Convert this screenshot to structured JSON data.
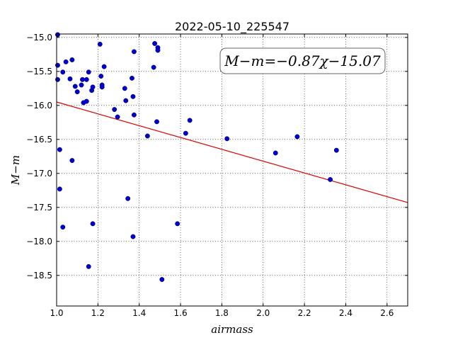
{
  "chart_data": {
    "type": "scatter",
    "title": "2022-05-10_225547",
    "xlabel": "airmass",
    "ylabel": "M−m",
    "xlim": [
      1.0,
      2.7
    ],
    "ylim": [
      -18.95,
      -14.95
    ],
    "y_inverted": true,
    "grid": true,
    "xticks": [
      1.0,
      1.2,
      1.4,
      1.6,
      1.8,
      2.0,
      2.2,
      2.4,
      2.6
    ],
    "xtick_labels": [
      "1.0",
      "1.2",
      "1.4",
      "1.6",
      "1.8",
      "2.0",
      "2.2",
      "2.4",
      "2.6"
    ],
    "yticks": [
      -15.0,
      -15.5,
      -16.0,
      -16.5,
      -17.0,
      -17.5,
      -18.0,
      -18.5
    ],
    "ytick_labels": [
      "−15.0",
      "−15.5",
      "−16.0",
      "−16.5",
      "−17.0",
      "−17.5",
      "−18.0",
      "−18.5"
    ],
    "annotation": "M−m=−0.87χ−15.07",
    "annotation_position": "top-right",
    "point_color": "#0000cc",
    "fit_color": "#dd0000",
    "fit": {
      "slope": -0.87,
      "intercept": -15.07
    },
    "points": [
      {
        "x": 1.005,
        "y": -14.96
      },
      {
        "x": 1.005,
        "y": -15.41
      },
      {
        "x": 1.005,
        "y": -15.62
      },
      {
        "x": 1.015,
        "y": -16.65
      },
      {
        "x": 1.015,
        "y": -17.23
      },
      {
        "x": 1.03,
        "y": -17.79
      },
      {
        "x": 1.03,
        "y": -15.51
      },
      {
        "x": 1.045,
        "y": -15.36
      },
      {
        "x": 1.065,
        "y": -15.61
      },
      {
        "x": 1.075,
        "y": -15.33
      },
      {
        "x": 1.075,
        "y": -16.81
      },
      {
        "x": 1.09,
        "y": -15.72
      },
      {
        "x": 1.1,
        "y": -15.8
      },
      {
        "x": 1.12,
        "y": -15.7
      },
      {
        "x": 1.125,
        "y": -15.62
      },
      {
        "x": 1.13,
        "y": -15.96
      },
      {
        "x": 1.145,
        "y": -15.94
      },
      {
        "x": 1.145,
        "y": -15.62
      },
      {
        "x": 1.155,
        "y": -15.51
      },
      {
        "x": 1.155,
        "y": -18.37
      },
      {
        "x": 1.17,
        "y": -15.78
      },
      {
        "x": 1.175,
        "y": -15.73
      },
      {
        "x": 1.175,
        "y": -17.74
      },
      {
        "x": 1.21,
        "y": -15.1
      },
      {
        "x": 1.215,
        "y": -15.57
      },
      {
        "x": 1.22,
        "y": -15.7
      },
      {
        "x": 1.22,
        "y": -15.73
      },
      {
        "x": 1.23,
        "y": -15.43
      },
      {
        "x": 1.28,
        "y": -16.06
      },
      {
        "x": 1.295,
        "y": -16.17
      },
      {
        "x": 1.33,
        "y": -15.75
      },
      {
        "x": 1.335,
        "y": -15.93
      },
      {
        "x": 1.345,
        "y": -17.37
      },
      {
        "x": 1.365,
        "y": -15.6
      },
      {
        "x": 1.37,
        "y": -15.87
      },
      {
        "x": 1.37,
        "y": -17.93
      },
      {
        "x": 1.375,
        "y": -15.21
      },
      {
        "x": 1.375,
        "y": -16.14
      },
      {
        "x": 1.44,
        "y": -16.45
      },
      {
        "x": 1.47,
        "y": -15.44
      },
      {
        "x": 1.475,
        "y": -15.09
      },
      {
        "x": 1.485,
        "y": -16.24
      },
      {
        "x": 1.49,
        "y": -15.15
      },
      {
        "x": 1.49,
        "y": -15.19
      },
      {
        "x": 1.51,
        "y": -18.56
      },
      {
        "x": 1.585,
        "y": -17.74
      },
      {
        "x": 1.625,
        "y": -16.41
      },
      {
        "x": 1.645,
        "y": -16.22
      },
      {
        "x": 1.825,
        "y": -16.49
      },
      {
        "x": 2.06,
        "y": -16.7
      },
      {
        "x": 2.165,
        "y": -16.46
      },
      {
        "x": 2.325,
        "y": -17.09
      },
      {
        "x": 2.355,
        "y": -16.66
      }
    ]
  }
}
